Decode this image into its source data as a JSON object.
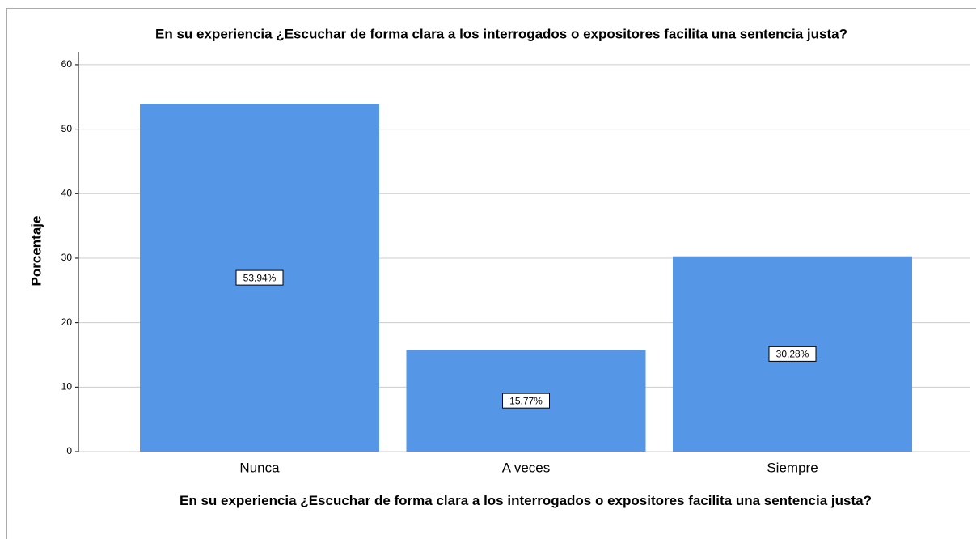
{
  "chart_data": {
    "type": "bar",
    "title": "En su experiencia ¿Escuchar de forma clara a los interrogados o expositores facilita una sentencia justa?",
    "x_label": "En su experiencia ¿Escuchar de forma clara a los interrogados o expositores facilita una sentencia justa?",
    "y_label": "Porcentaje",
    "categories": [
      "Nunca",
      "A veces",
      "Siempre"
    ],
    "values": [
      53.94,
      15.77,
      30.28
    ],
    "value_labels": [
      "53,94%",
      "15,77%",
      "30,28%"
    ],
    "color": "#5596e6",
    "ylim": [
      0,
      62
    ],
    "yticks": [
      0,
      10,
      20,
      30,
      40,
      50,
      60
    ],
    "grid": true
  }
}
